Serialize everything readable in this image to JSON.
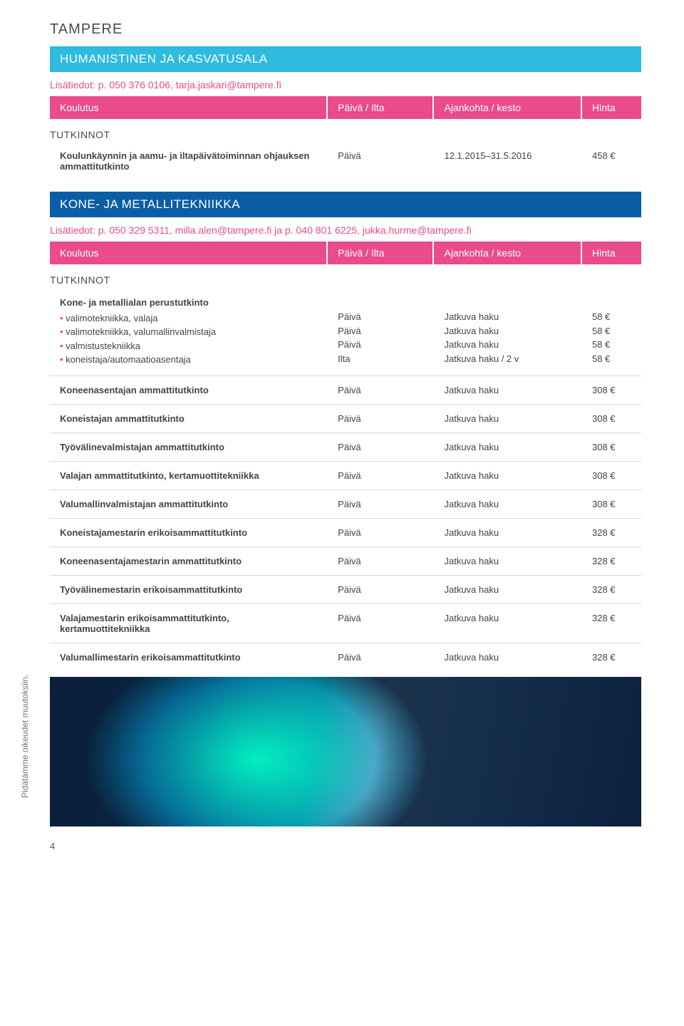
{
  "page": {
    "location_title": "TAMPERE",
    "page_number": "4",
    "sidebar_note": "Pidätämme oikeudet muutoksiin."
  },
  "colors": {
    "pink": "#e94b8b",
    "cyan": "#2dbbe0",
    "blue": "#0a5ea5",
    "divider": "#d8d8d8",
    "text": "#444444"
  },
  "header_labels": {
    "course": "Koulutus",
    "time": "Päivä / Ilta",
    "period": "Ajankohta / kesto",
    "price": "Hinta"
  },
  "subheading": "TUTKINNOT",
  "section1": {
    "banner": "HUMANISTINEN JA KASVATUSALA",
    "contact": "Lisätiedot: p. 050 376 0106, tarja.jaskari@tampere.fi",
    "rows": [
      {
        "course": "Koulunkäynnin ja aamu- ja iltapäivätoiminnan ohjauksen ammattitutkinto",
        "time": "Päivä",
        "period": "12.1.2015–31.5.2016",
        "price": "458 €"
      }
    ]
  },
  "section2": {
    "banner": "KONE- JA METALLITEKNIIKKA",
    "contact": "Lisätiedot: p. 050 329 5311, milla.alen@tampere.fi ja p. 040 801 6225, jukka.hurme@tampere.fi",
    "multi_row": {
      "title": "Kone- ja metallialan perustutkinto",
      "items": [
        "valimotekniikka, valaja",
        "valimotekniikka, valumallinvalmistaja",
        "valmistustekniikka",
        "koneistaja/automaatioasentaja"
      ],
      "times": [
        "Päivä",
        "Päivä",
        "Päivä",
        "Ilta"
      ],
      "periods": [
        "Jatkuva haku",
        "Jatkuva haku",
        "Jatkuva haku",
        "Jatkuva haku / 2 v"
      ],
      "prices": [
        "58 €",
        "58 €",
        "58 €",
        "58 €"
      ]
    },
    "rows": [
      {
        "course": "Koneenasentajan ammattitutkinto",
        "time": "Päivä",
        "period": "Jatkuva haku",
        "price": "308 €"
      },
      {
        "course": "Koneistajan ammattitutkinto",
        "time": "Päivä",
        "period": "Jatkuva haku",
        "price": "308 €"
      },
      {
        "course": "Työvälinevalmistajan ammattitutkinto",
        "time": "Päivä",
        "period": "Jatkuva haku",
        "price": "308 €"
      },
      {
        "course": "Valajan ammattitutkinto, kertamuottitekniikka",
        "time": "Päivä",
        "period": "Jatkuva haku",
        "price": "308 €"
      },
      {
        "course": "Valumallinvalmistajan ammattitutkinto",
        "time": "Päivä",
        "period": "Jatkuva haku",
        "price": "308 €"
      },
      {
        "course": "Koneistajamestarin erikoisammattitutkinto",
        "time": "Päivä",
        "period": "Jatkuva haku",
        "price": "328 €"
      },
      {
        "course": "Koneenasentajamestarin ammattitutkinto",
        "time": "Päivä",
        "period": "Jatkuva haku",
        "price": "328 €"
      },
      {
        "course": "Työvälinemestarin erikoisammattitutkinto",
        "time": "Päivä",
        "period": "Jatkuva haku",
        "price": "328 €"
      },
      {
        "course": "Valajamestarin erikoisammattitutkinto, kertamuottitekniikka",
        "time": "Päivä",
        "period": "Jatkuva haku",
        "price": "328 €"
      },
      {
        "course": "Valumallimestarin erikoisammattitutkinto",
        "time": "Päivä",
        "period": "Jatkuva haku",
        "price": "328 €"
      }
    ]
  }
}
